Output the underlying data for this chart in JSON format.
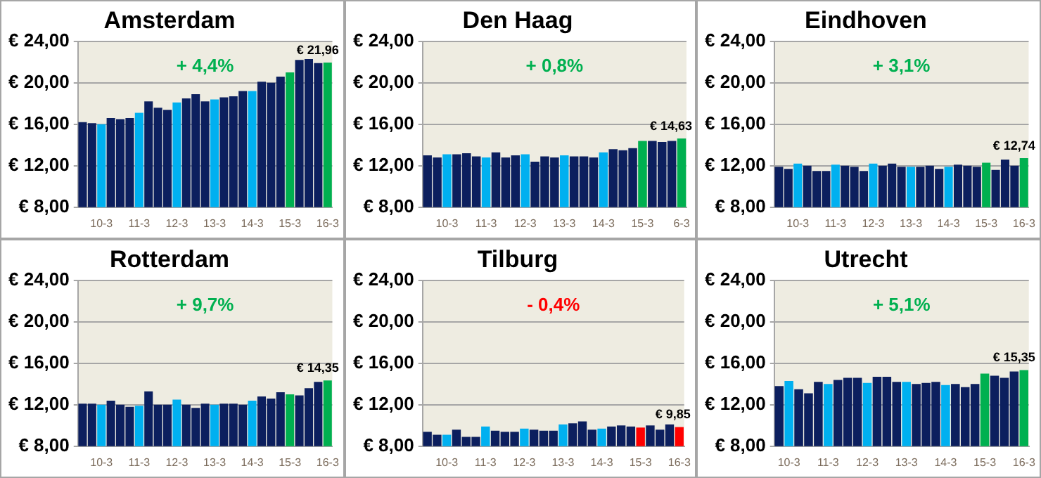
{
  "chart_data": [
    {
      "type": "bar",
      "title": "Amsterdam",
      "subtitle": "+ 4,4%",
      "categories": [
        null,
        null,
        "10-3",
        null,
        null,
        null,
        "11-3",
        null,
        null,
        null,
        "12-3",
        null,
        null,
        null,
        "13-3",
        null,
        null,
        null,
        "14-3",
        null,
        null,
        null,
        "15-3",
        null,
        null,
        null,
        "16-3"
      ],
      "values": [
        16.2,
        16.1,
        16.0,
        16.6,
        16.5,
        16.6,
        17.1,
        18.2,
        17.6,
        17.4,
        18.1,
        18.5,
        18.9,
        18.2,
        18.4,
        18.6,
        18.7,
        19.2,
        19.2,
        20.1,
        20.0,
        20.6,
        21.0,
        22.2,
        22.3,
        21.9,
        21.96
      ],
      "colors": [
        "#0c1f5e",
        "#0c1f5e",
        "#00b0f0",
        "#0c1f5e",
        "#0c1f5e",
        "#0c1f5e",
        "#00b0f0",
        "#0c1f5e",
        "#0c1f5e",
        "#0c1f5e",
        "#00b0f0",
        "#0c1f5e",
        "#0c1f5e",
        "#0c1f5e",
        "#00b0f0",
        "#0c1f5e",
        "#0c1f5e",
        "#0c1f5e",
        "#00b0f0",
        "#0c1f5e",
        "#0c1f5e",
        "#0c1f5e",
        "#00b050",
        "#0c1f5e",
        "#0c1f5e",
        "#0c1f5e",
        "#00b050"
      ],
      "value_labels": [
        null,
        null,
        null,
        null,
        null,
        null,
        null,
        null,
        null,
        null,
        null,
        null,
        null,
        null,
        null,
        null,
        null,
        null,
        null,
        null,
        null,
        null,
        null,
        null,
        null,
        null,
        "€ 21,96"
      ],
      "ylim": [
        8,
        24
      ],
      "yticks": [
        {
          "value": 8,
          "label": "€ 8,00"
        },
        {
          "value": 12,
          "label": "€ 12,00"
        },
        {
          "value": 16,
          "label": "€ 16,00"
        },
        {
          "value": 20,
          "label": "€ 20,00"
        },
        {
          "value": 24,
          "label": "€ 24,00"
        }
      ],
      "grid": "y",
      "legend": false
    },
    {
      "type": "bar",
      "title": "Den Haag",
      "subtitle": "+ 0,8%",
      "categories": [
        null,
        null,
        "10-3",
        null,
        null,
        null,
        "11-3",
        null,
        null,
        null,
        "12-3",
        null,
        null,
        null,
        "13-3",
        null,
        null,
        null,
        "14-3",
        null,
        null,
        null,
        "15-3",
        null,
        null,
        null,
        "6-3"
      ],
      "values": [
        13.0,
        12.8,
        13.1,
        13.1,
        13.2,
        12.9,
        12.8,
        13.3,
        12.8,
        13.0,
        13.1,
        12.4,
        12.9,
        12.8,
        13.0,
        12.9,
        12.9,
        12.8,
        13.3,
        13.6,
        13.5,
        13.7,
        14.4,
        14.4,
        14.3,
        14.4,
        14.63
      ],
      "colors": [
        "#0c1f5e",
        "#0c1f5e",
        "#00b0f0",
        "#0c1f5e",
        "#0c1f5e",
        "#0c1f5e",
        "#00b0f0",
        "#0c1f5e",
        "#0c1f5e",
        "#0c1f5e",
        "#00b0f0",
        "#0c1f5e",
        "#0c1f5e",
        "#0c1f5e",
        "#00b0f0",
        "#0c1f5e",
        "#0c1f5e",
        "#0c1f5e",
        "#00b0f0",
        "#0c1f5e",
        "#0c1f5e",
        "#0c1f5e",
        "#00b050",
        "#0c1f5e",
        "#0c1f5e",
        "#0c1f5e",
        "#00b050"
      ],
      "value_labels": [
        null,
        null,
        null,
        null,
        null,
        null,
        null,
        null,
        null,
        null,
        null,
        null,
        null,
        null,
        null,
        null,
        null,
        null,
        null,
        null,
        null,
        null,
        null,
        null,
        null,
        null,
        "€ 14,63"
      ],
      "ylim": [
        8,
        24
      ],
      "yticks": [
        {
          "value": 8,
          "label": "€ 8,00"
        },
        {
          "value": 12,
          "label": "€ 12,00"
        },
        {
          "value": 16,
          "label": "€ 16,00"
        },
        {
          "value": 20,
          "label": "€ 20,00"
        },
        {
          "value": 24,
          "label": "€ 24,00"
        }
      ],
      "grid": "y",
      "legend": false
    },
    {
      "type": "bar",
      "title": "Eindhoven",
      "subtitle": "+ 3,1%",
      "categories": [
        null,
        null,
        "10-3",
        null,
        null,
        null,
        "11-3",
        null,
        null,
        null,
        "12-3",
        null,
        null,
        null,
        "13-3",
        null,
        null,
        null,
        "14-3",
        null,
        null,
        null,
        "15-3",
        null,
        null,
        null,
        "16-3"
      ],
      "values": [
        11.9,
        11.7,
        12.2,
        12.0,
        11.5,
        11.5,
        12.1,
        12.0,
        11.9,
        11.5,
        12.2,
        12.0,
        12.2,
        11.9,
        11.9,
        11.9,
        12.0,
        11.7,
        11.9,
        12.1,
        12.0,
        11.9,
        12.3,
        11.6,
        12.6,
        12.0,
        12.74
      ],
      "colors": [
        "#0c1f5e",
        "#0c1f5e",
        "#00b0f0",
        "#0c1f5e",
        "#0c1f5e",
        "#0c1f5e",
        "#00b0f0",
        "#0c1f5e",
        "#0c1f5e",
        "#0c1f5e",
        "#00b0f0",
        "#0c1f5e",
        "#0c1f5e",
        "#0c1f5e",
        "#00b0f0",
        "#0c1f5e",
        "#0c1f5e",
        "#0c1f5e",
        "#00b0f0",
        "#0c1f5e",
        "#0c1f5e",
        "#0c1f5e",
        "#00b050",
        "#0c1f5e",
        "#0c1f5e",
        "#0c1f5e",
        "#00b050"
      ],
      "value_labels": [
        null,
        null,
        null,
        null,
        null,
        null,
        null,
        null,
        null,
        null,
        null,
        null,
        null,
        null,
        null,
        null,
        null,
        null,
        null,
        null,
        null,
        null,
        null,
        null,
        null,
        null,
        "€ 12,74"
      ],
      "ylim": [
        8,
        24
      ],
      "yticks": [
        {
          "value": 8,
          "label": "€ 8,00"
        },
        {
          "value": 12,
          "label": "€ 12,00"
        },
        {
          "value": 16,
          "label": "€ 16,00"
        },
        {
          "value": 20,
          "label": "€ 20,00"
        },
        {
          "value": 24,
          "label": "€ 24,00"
        }
      ],
      "grid": "y",
      "legend": false
    },
    {
      "type": "bar",
      "title": "Rotterdam",
      "subtitle": "+ 9,7%",
      "categories": [
        null,
        null,
        "10-3",
        null,
        null,
        null,
        "11-3",
        null,
        null,
        null,
        "12-3",
        null,
        null,
        null,
        "13-3",
        null,
        null,
        null,
        "14-3",
        null,
        null,
        null,
        "15-3",
        null,
        null,
        null,
        "16-3"
      ],
      "values": [
        12.1,
        12.1,
        12.0,
        12.4,
        12.0,
        11.8,
        11.9,
        13.3,
        12.0,
        12.0,
        12.5,
        12.0,
        11.7,
        12.1,
        12.0,
        12.1,
        12.1,
        12.0,
        12.4,
        12.8,
        12.6,
        13.2,
        13.0,
        12.9,
        13.6,
        14.2,
        14.35
      ],
      "colors": [
        "#0c1f5e",
        "#0c1f5e",
        "#00b0f0",
        "#0c1f5e",
        "#0c1f5e",
        "#0c1f5e",
        "#00b0f0",
        "#0c1f5e",
        "#0c1f5e",
        "#0c1f5e",
        "#00b0f0",
        "#0c1f5e",
        "#0c1f5e",
        "#0c1f5e",
        "#00b0f0",
        "#0c1f5e",
        "#0c1f5e",
        "#0c1f5e",
        "#00b0f0",
        "#0c1f5e",
        "#0c1f5e",
        "#0c1f5e",
        "#00b050",
        "#0c1f5e",
        "#0c1f5e",
        "#0c1f5e",
        "#00b050"
      ],
      "value_labels": [
        null,
        null,
        null,
        null,
        null,
        null,
        null,
        null,
        null,
        null,
        null,
        null,
        null,
        null,
        null,
        null,
        null,
        null,
        null,
        null,
        null,
        null,
        null,
        null,
        null,
        null,
        "€ 14,35"
      ],
      "ylim": [
        8,
        24
      ],
      "yticks": [
        {
          "value": 8,
          "label": "€ 8,00"
        },
        {
          "value": 12,
          "label": "€ 12,00"
        },
        {
          "value": 16,
          "label": "€ 16,00"
        },
        {
          "value": 20,
          "label": "€ 20,00"
        },
        {
          "value": 24,
          "label": "€ 24,00"
        }
      ],
      "grid": "y",
      "legend": false
    },
    {
      "type": "bar",
      "title": "Tilburg",
      "subtitle": "- 0,4%",
      "categories": [
        null,
        null,
        "10-3",
        null,
        null,
        null,
        "11-3",
        null,
        null,
        null,
        "12-3",
        null,
        null,
        null,
        "13-3",
        null,
        null,
        null,
        "14-3",
        null,
        null,
        null,
        "15-3",
        null,
        null,
        null,
        "16-3"
      ],
      "values": [
        9.4,
        9.1,
        9.1,
        9.6,
        8.9,
        8.9,
        9.9,
        9.5,
        9.4,
        9.4,
        9.7,
        9.6,
        9.5,
        9.5,
        10.1,
        10.2,
        10.4,
        9.6,
        9.7,
        9.9,
        10.0,
        9.9,
        9.8,
        10.0,
        9.6,
        10.1,
        9.85
      ],
      "colors": [
        "#0c1f5e",
        "#0c1f5e",
        "#00b0f0",
        "#0c1f5e",
        "#0c1f5e",
        "#0c1f5e",
        "#00b0f0",
        "#0c1f5e",
        "#0c1f5e",
        "#0c1f5e",
        "#00b0f0",
        "#0c1f5e",
        "#0c1f5e",
        "#0c1f5e",
        "#00b0f0",
        "#0c1f5e",
        "#0c1f5e",
        "#0c1f5e",
        "#00b0f0",
        "#0c1f5e",
        "#0c1f5e",
        "#0c1f5e",
        "#ff0000",
        "#0c1f5e",
        "#0c1f5e",
        "#0c1f5e",
        "#ff0000"
      ],
      "value_labels": [
        null,
        null,
        null,
        null,
        null,
        null,
        null,
        null,
        null,
        null,
        null,
        null,
        null,
        null,
        null,
        null,
        null,
        null,
        null,
        null,
        null,
        null,
        null,
        null,
        null,
        null,
        "€ 9,85"
      ],
      "ylim": [
        8,
        24
      ],
      "yticks": [
        {
          "value": 8,
          "label": "€ 8,00"
        },
        {
          "value": 12,
          "label": "€ 12,00"
        },
        {
          "value": 16,
          "label": "€ 16,00"
        },
        {
          "value": 20,
          "label": "€ 20,00"
        },
        {
          "value": 24,
          "label": "€ 24,00"
        }
      ],
      "grid": "y",
      "legend": false
    },
    {
      "type": "bar",
      "title": "Utrecht",
      "subtitle": "+ 5,1%",
      "categories": [
        null,
        "10-3",
        null,
        null,
        null,
        "11-3",
        null,
        null,
        null,
        "12-3",
        null,
        null,
        null,
        "13-3",
        null,
        null,
        null,
        "14-3",
        null,
        null,
        null,
        "15-3",
        null,
        null,
        null,
        "16-3"
      ],
      "values": [
        13.8,
        14.3,
        13.5,
        13.1,
        14.2,
        14.0,
        14.4,
        14.6,
        14.6,
        14.1,
        14.7,
        14.7,
        14.2,
        14.2,
        14.0,
        14.1,
        14.2,
        13.9,
        14.0,
        13.7,
        14.0,
        15.0,
        14.8,
        14.6,
        15.2,
        15.35
      ],
      "colors": [
        "#0c1f5e",
        "#00b0f0",
        "#0c1f5e",
        "#0c1f5e",
        "#0c1f5e",
        "#00b0f0",
        "#0c1f5e",
        "#0c1f5e",
        "#0c1f5e",
        "#00b0f0",
        "#0c1f5e",
        "#0c1f5e",
        "#0c1f5e",
        "#00b0f0",
        "#0c1f5e",
        "#0c1f5e",
        "#0c1f5e",
        "#00b0f0",
        "#0c1f5e",
        "#0c1f5e",
        "#0c1f5e",
        "#00b050",
        "#0c1f5e",
        "#0c1f5e",
        "#0c1f5e",
        "#00b050"
      ],
      "value_labels": [
        null,
        null,
        null,
        null,
        null,
        null,
        null,
        null,
        null,
        null,
        null,
        null,
        null,
        null,
        null,
        null,
        null,
        null,
        null,
        null,
        null,
        null,
        null,
        null,
        null,
        "€ 15,35"
      ],
      "ylim": [
        8,
        24
      ],
      "yticks": [
        {
          "value": 8,
          "label": "€ 8,00"
        },
        {
          "value": 12,
          "label": "€ 12,00"
        },
        {
          "value": 16,
          "label": "€ 16,00"
        },
        {
          "value": 20,
          "label": "€ 20,00"
        },
        {
          "value": 24,
          "label": "€ 24,00"
        }
      ],
      "grid": "y",
      "legend": false
    }
  ]
}
